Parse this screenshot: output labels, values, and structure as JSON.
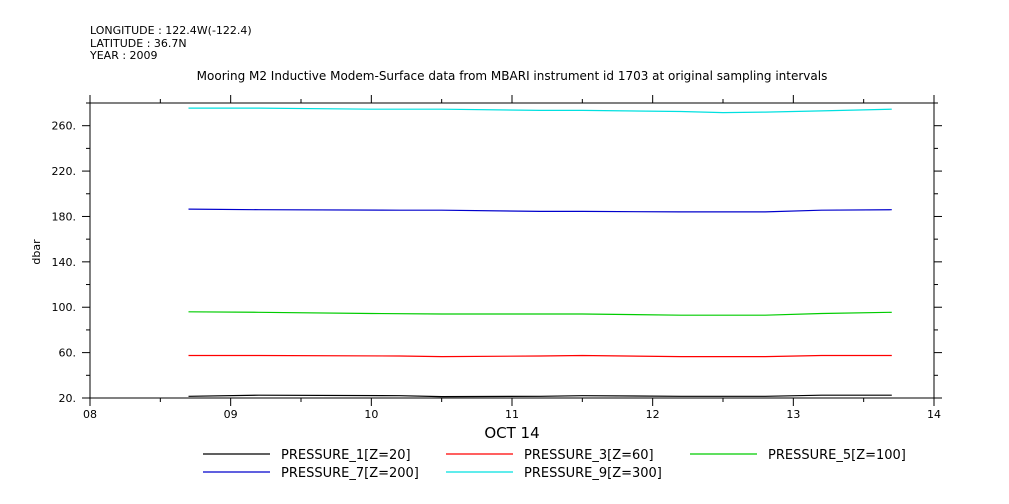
{
  "header": {
    "longitude": "LONGITUDE : 122.4W(-122.4)",
    "latitude": "LATITUDE : 36.7N",
    "year": "YEAR : 2009"
  },
  "chart_data": {
    "type": "line",
    "title": "Mooring M2 Inductive Modem-Surface data from MBARI instrument id 1703 at original sampling intervals",
    "xlabel": "OCT 14",
    "ylabel": "dbar",
    "xlim": [
      8,
      14
    ],
    "ylim": [
      20,
      280
    ],
    "x_ticks": [
      "08",
      "09",
      "10",
      "11",
      "12",
      "13",
      "14"
    ],
    "y_ticks": [
      "20.",
      "60.",
      "100.",
      "140.",
      "180.",
      "220.",
      "260."
    ],
    "grid": false,
    "legend_position": "bottom",
    "series": [
      {
        "name": "PRESSURE_1[Z=20]",
        "color": "#000000",
        "x": [
          8.7,
          9.2,
          10.2,
          10.5,
          11.2,
          11.5,
          12.2,
          12.8,
          13.2,
          13.7
        ],
        "y": [
          21.5,
          22.5,
          22.0,
          21.2,
          21.5,
          22.0,
          21.5,
          21.5,
          22.5,
          22.5
        ]
      },
      {
        "name": "PRESSURE_3[Z=60]",
        "color": "#ff0000",
        "x": [
          8.7,
          9.2,
          10.2,
          10.5,
          11.2,
          11.5,
          12.2,
          12.8,
          13.2,
          13.7
        ],
        "y": [
          57.5,
          57.5,
          57.0,
          56.5,
          57.0,
          57.5,
          56.5,
          56.5,
          57.5,
          57.5
        ]
      },
      {
        "name": "PRESSURE_5[Z=100]",
        "color": "#00cc00",
        "x": [
          8.7,
          9.2,
          10.0,
          10.5,
          11.2,
          11.5,
          12.2,
          12.8,
          13.2,
          13.7
        ],
        "y": [
          96.0,
          95.5,
          94.5,
          94.0,
          94.0,
          94.0,
          93.0,
          93.0,
          94.5,
          95.5
        ]
      },
      {
        "name": "PRESSURE_7[Z=200]",
        "color": "#0000cc",
        "x": [
          8.7,
          9.2,
          10.2,
          10.5,
          11.2,
          11.5,
          12.2,
          12.8,
          13.2,
          13.7
        ],
        "y": [
          186.5,
          186.0,
          185.5,
          185.5,
          184.5,
          184.5,
          184.0,
          184.0,
          185.5,
          186.0
        ]
      },
      {
        "name": "PRESSURE_9[Z=300]",
        "color": "#00e0e0",
        "x": [
          8.7,
          9.2,
          10.0,
          10.5,
          11.2,
          11.5,
          12.2,
          12.5,
          12.8,
          13.2,
          13.7
        ],
        "y": [
          275.5,
          275.5,
          274.5,
          274.5,
          273.5,
          273.5,
          272.5,
          271.5,
          272.0,
          273.0,
          274.5
        ]
      }
    ]
  }
}
